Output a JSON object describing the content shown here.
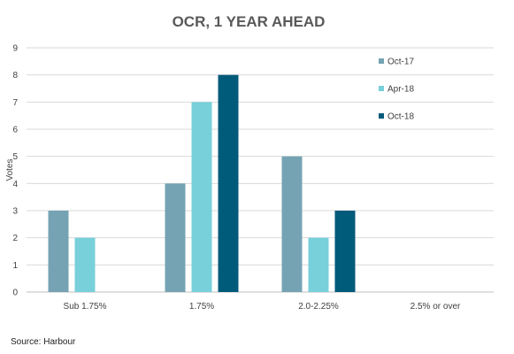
{
  "chart_data": {
    "type": "bar",
    "title": "OCR, 1 YEAR AHEAD",
    "ylabel": "Votes",
    "xlabel": "",
    "categories": [
      "Sub 1.75%",
      "1.75%",
      "2.0-2.25%",
      "2.5% or over"
    ],
    "series": [
      {
        "name": "Oct-17",
        "values": [
          3,
          4,
          5,
          0
        ],
        "color": "#75A3B3"
      },
      {
        "name": "Apr-18",
        "values": [
          2,
          7,
          2,
          0
        ],
        "color": "#77D0DA"
      },
      {
        "name": "Oct-18",
        "values": [
          0,
          8,
          3,
          0
        ],
        "color": "#005A7A"
      }
    ],
    "ylim": [
      0,
      9
    ],
    "yticks": [
      0,
      1,
      2,
      3,
      4,
      5,
      6,
      7,
      8,
      9
    ],
    "grid": true,
    "legend_position": "right"
  },
  "footer": {
    "source": "Source: Harbour"
  }
}
